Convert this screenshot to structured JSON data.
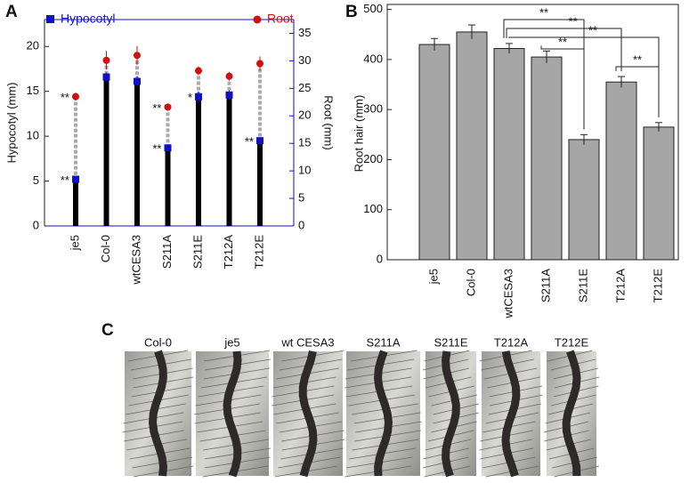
{
  "panels": {
    "a": "A",
    "b": "B",
    "c": "C"
  },
  "chart_data": [
    {
      "type": "dot-bar",
      "categories": [
        "je5",
        "Col-0",
        "wtCESA3",
        "S211A",
        "S211E",
        "T212A",
        "T212E"
      ],
      "ylabel": "Hypocotyl (mm)",
      "y2label": "Root  (mm)",
      "ylim": [
        0,
        23
      ],
      "yticks": [
        0,
        5,
        10,
        15,
        20
      ],
      "y2lim": [
        0,
        37.5
      ],
      "y2ticks": [
        0,
        5,
        10,
        15,
        20,
        25,
        30,
        35
      ],
      "series": [
        {
          "name": "Hypocotyl",
          "color": "#1010c8",
          "values": [
            5.2,
            16.6,
            16.1,
            8.7,
            14.4,
            14.6,
            9.5
          ],
          "errors": [
            0.3,
            0.5,
            0.6,
            0.4,
            0.6,
            0.5,
            0.4
          ]
        },
        {
          "name": "Root",
          "color": "#d01010",
          "axis": "y2",
          "values": [
            23.5,
            30.1,
            31.0,
            21.6,
            28.2,
            27.2,
            29.5
          ],
          "errors": [
            0.7,
            1.7,
            1.7,
            0.6,
            0.8,
            0.8,
            1.3
          ]
        }
      ],
      "annotations": [
        {
          "category": "je5",
          "series": "Root",
          "text": "**"
        },
        {
          "category": "je5",
          "series": "Hypocotyl",
          "text": "**"
        },
        {
          "category": "S211A",
          "series": "Root",
          "text": "**"
        },
        {
          "category": "S211A",
          "series": "Hypocotyl",
          "text": "**"
        },
        {
          "category": "S211E",
          "series": "Hypocotyl",
          "text": "*"
        },
        {
          "category": "T212E",
          "series": "Hypocotyl",
          "text": "**"
        }
      ]
    },
    {
      "type": "bar",
      "categories": [
        "je5",
        "Col-0",
        "wtCESA3",
        "S211A",
        "S211E",
        "T212A",
        "T212E"
      ],
      "ylabel": "Root hair (mm)",
      "ylim": [
        0,
        510
      ],
      "yticks": [
        0,
        100,
        200,
        300,
        400,
        500
      ],
      "color": "#a6a6a6",
      "values": [
        430,
        455,
        422,
        405,
        240,
        355,
        265
      ],
      "errors": [
        12,
        14,
        10,
        12,
        10,
        11,
        9
      ],
      "comparisons": [
        {
          "pair": [
            "wtCESA3",
            "S211E"
          ],
          "text": "**"
        },
        {
          "pair": [
            "wtCESA3",
            "T212A"
          ],
          "text": "**"
        },
        {
          "pair": [
            "wtCESA3",
            "T212E"
          ],
          "text": "**"
        },
        {
          "pair": [
            "S211A",
            "S211E"
          ],
          "text": "**"
        },
        {
          "pair": [
            "T212A",
            "T212E"
          ],
          "text": "**"
        }
      ]
    }
  ],
  "photos": {
    "labels": [
      "Col-0",
      "je5",
      "wt CESA3",
      "S211A",
      "S211E",
      "T212A",
      "T212E"
    ]
  }
}
